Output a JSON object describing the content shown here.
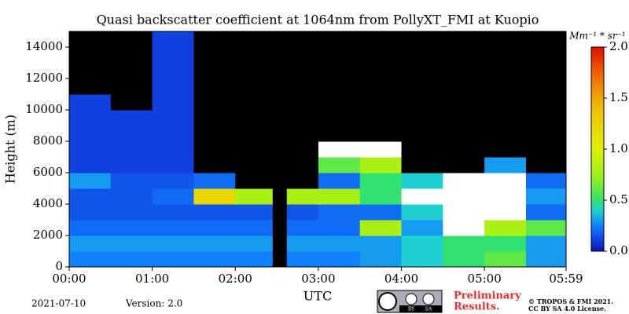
{
  "chart_data": {
    "type": "heatmap",
    "title": "Quasi backscatter coefficient at 1064nm from PollyXT_FMI at Kuopio",
    "x_label": "UTC",
    "y_label": "Height (m)",
    "colorbar_label": "Mm⁻¹ * sr⁻¹",
    "xlim": [
      0,
      5.983
    ],
    "xticks": [
      {
        "value": 0,
        "label": "00:00"
      },
      {
        "value": 1,
        "label": "01:00"
      },
      {
        "value": 2,
        "label": "02:00"
      },
      {
        "value": 3,
        "label": "03:00"
      },
      {
        "value": 4,
        "label": "04:00"
      },
      {
        "value": 5,
        "label": "05:00"
      },
      {
        "value": 5.983,
        "label": "05:59"
      }
    ],
    "ylim": [
      0,
      15000
    ],
    "yticks": [
      0,
      2000,
      4000,
      6000,
      8000,
      10000,
      12000,
      14000
    ],
    "zlim": [
      0,
      2
    ],
    "zticks": [
      {
        "value": 0,
        "label": "0.0"
      },
      {
        "value": 0.5,
        "label": "0.5"
      },
      {
        "value": 1,
        "label": "1.0"
      },
      {
        "value": 1.5,
        "label": "1.5"
      },
      {
        "value": 2,
        "label": "2.0"
      }
    ],
    "colormap": [
      [
        0,
        "#1010b0"
      ],
      [
        0.1,
        "#1040e0"
      ],
      [
        0.25,
        "#1080ff"
      ],
      [
        0.4,
        "#20d0d0"
      ],
      [
        0.5,
        "#30e070"
      ],
      [
        0.7,
        "#90f020"
      ],
      [
        1.0,
        "#e0f000"
      ],
      [
        1.4,
        "#f0c000"
      ],
      [
        1.7,
        "#f07000"
      ],
      [
        2,
        "#e01000"
      ]
    ],
    "over_color": "#ffffff",
    "missing_color": "#000000",
    "x_bins": [
      0,
      0.5,
      1,
      1.5,
      2,
      2.5,
      3,
      3.5,
      4,
      4.5,
      5,
      5.5,
      5.983
    ],
    "y_bins": [
      0,
      1000,
      2000,
      3000,
      4000,
      5000,
      6000,
      7000,
      8000,
      9000,
      10000,
      11000,
      12000,
      13000,
      14000,
      15000
    ],
    "values": [
      [
        0.25,
        0.25,
        0.25,
        0.25,
        0.25,
        0.25,
        0.25,
        0.3,
        0.4,
        0.5,
        0.6,
        0.3
      ],
      [
        0.3,
        0.3,
        0.3,
        0.3,
        0.3,
        0.3,
        0.3,
        0.3,
        0.4,
        0.5,
        0.5,
        0.3
      ],
      [
        0.2,
        0.2,
        0.2,
        0.2,
        0.2,
        0.2,
        0.2,
        0.8,
        0.3,
        2.5,
        0.8,
        0.6
      ],
      [
        0.15,
        0.15,
        0.15,
        0.15,
        0.15,
        0.15,
        0.2,
        0.2,
        0.4,
        2.5,
        2.5,
        0.2
      ],
      [
        0.15,
        0.15,
        0.2,
        1.2,
        0.8,
        0.8,
        0.8,
        0.5,
        2.5,
        2.5,
        2.5,
        0.3
      ],
      [
        0.3,
        0.15,
        0.15,
        0.2,
        null,
        null,
        0.2,
        0.5,
        0.4,
        2.5,
        2.5,
        0.2
      ],
      [
        0.1,
        0.1,
        0.1,
        null,
        null,
        null,
        0.6,
        0.8,
        null,
        null,
        0.3,
        null
      ],
      [
        0.1,
        0.1,
        0.1,
        null,
        null,
        null,
        2.5,
        2.5,
        null,
        null,
        null,
        null
      ],
      [
        0.1,
        0.1,
        0.1,
        null,
        null,
        null,
        null,
        null,
        null,
        null,
        null,
        null
      ],
      [
        0.1,
        0.1,
        0.1,
        null,
        null,
        null,
        null,
        null,
        null,
        null,
        null,
        null
      ],
      [
        0.1,
        null,
        0.1,
        null,
        null,
        null,
        null,
        null,
        null,
        null,
        null,
        null
      ],
      [
        null,
        null,
        0.1,
        null,
        null,
        null,
        null,
        null,
        null,
        null,
        null,
        null
      ],
      [
        null,
        null,
        0.1,
        null,
        null,
        null,
        null,
        null,
        null,
        null,
        null,
        null
      ],
      [
        null,
        null,
        0.1,
        null,
        null,
        null,
        null,
        null,
        null,
        null,
        null,
        null
      ],
      [
        null,
        null,
        0.1,
        null,
        null,
        null,
        null,
        null,
        null,
        null,
        null,
        null
      ]
    ],
    "missing_ranges": [
      [
        2.45,
        2.62
      ]
    ]
  },
  "footer": {
    "date": "2021-07-10",
    "version": "Version: 2.0",
    "notice": [
      "Preliminary",
      "Results."
    ],
    "copyright": [
      "© TROPOS & FMI 2021.",
      "CC BY SA 4.0 License."
    ],
    "badge": [
      "BY",
      "SA"
    ]
  }
}
